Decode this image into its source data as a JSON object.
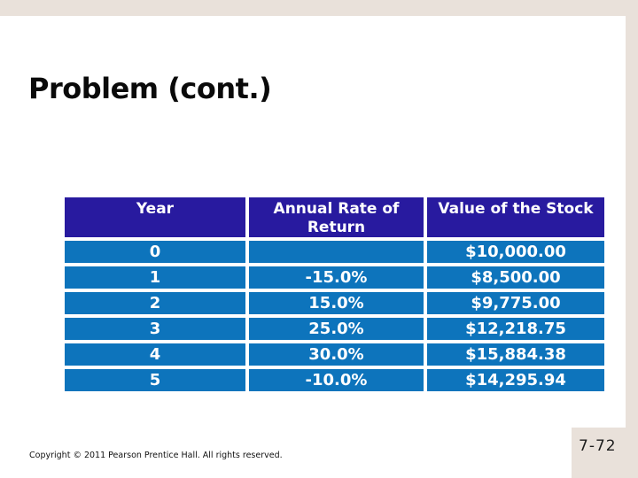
{
  "slide": {
    "title": "Problem (cont.)",
    "copyright": "Copyright © 2011 Pearson Prentice Hall. All rights reserved.",
    "page_number": "7-72"
  },
  "table": {
    "headers": [
      "Year",
      "Annual Rate of Return",
      "Value of the Stock"
    ],
    "rows": [
      [
        "0",
        "",
        "$10,000.00"
      ],
      [
        "1",
        "-15.0%",
        "$8,500.00"
      ],
      [
        "2",
        "15.0%",
        "$9,775.00"
      ],
      [
        "3",
        "25.0%",
        "$12,218.75"
      ],
      [
        "4",
        "30.0%",
        "$15,884.38"
      ],
      [
        "5",
        "-10.0%",
        "$14,295.94"
      ]
    ]
  },
  "colors": {
    "page_border_beige": "#e9e1da",
    "table_header_bg": "#281a9f",
    "table_row_bg": "#0d74bc",
    "table_text": "#ffffff",
    "title_text": "#0a0a0a"
  }
}
